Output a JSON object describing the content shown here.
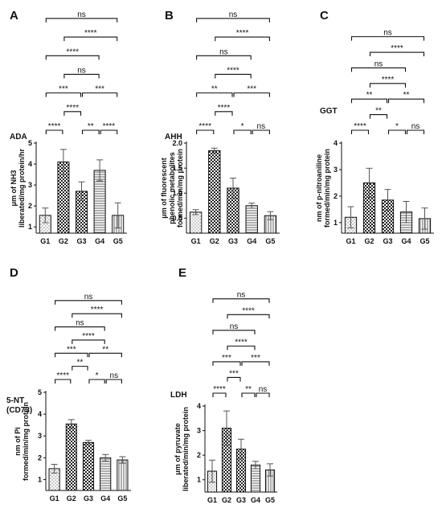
{
  "chart_data": [
    {
      "type": "bar",
      "panel": "A",
      "title": "ADA",
      "ylabel": [
        "μm of NH3",
        "liberated/mg protein/hr"
      ],
      "categories": [
        "G1",
        "G2",
        "G3",
        "G4",
        "G5"
      ],
      "values": [
        1.55,
        4.1,
        2.7,
        3.7,
        1.55
      ],
      "errors": [
        0.35,
        0.6,
        0.45,
        0.5,
        0.6
      ],
      "ylim": [
        0.7,
        5
      ],
      "yticks": [
        1,
        2,
        3,
        4,
        5
      ],
      "patterns": [
        "dots",
        "checker",
        "checker",
        "hlines",
        "vlines"
      ],
      "significance": [
        {
          "from": 0,
          "to": 1,
          "label": "****"
        },
        {
          "from": 2,
          "to": 3,
          "label": "**"
        },
        {
          "from": 3,
          "to": 4,
          "label": "****"
        },
        {
          "from": 1,
          "to": 2,
          "label": "****"
        },
        {
          "from": 0,
          "to": 2,
          "label": "***"
        },
        {
          "from": 2,
          "to": 4,
          "label": "***"
        },
        {
          "from": 1,
          "to": 3,
          "label": "ns"
        },
        {
          "from": 0,
          "to": 3,
          "label": "****"
        },
        {
          "from": 1,
          "to": 4,
          "label": "****"
        },
        {
          "from": 0,
          "to": 4,
          "label": "ns"
        }
      ]
    },
    {
      "type": "bar",
      "panel": "B",
      "title": "AHH",
      "ylabel": [
        "μm of fluorescent",
        "phenolic metabolites",
        "formed/min/mg protein"
      ],
      "categories": [
        "G1",
        "G2",
        "G3",
        "G4",
        "G5"
      ],
      "values": [
        0.62,
        1.85,
        1.1,
        0.75,
        0.55
      ],
      "errors": [
        0.05,
        0.05,
        0.2,
        0.05,
        0.08
      ],
      "ylim": [
        0.2,
        2
      ],
      "yticks": [
        0.5,
        1.0,
        1.5,
        2.0
      ],
      "patterns": [
        "dots",
        "checker",
        "checker",
        "hlines",
        "vlines"
      ],
      "significance": [
        {
          "from": 0,
          "to": 1,
          "label": "****"
        },
        {
          "from": 2,
          "to": 3,
          "label": "*"
        },
        {
          "from": 3,
          "to": 4,
          "label": "ns"
        },
        {
          "from": 1,
          "to": 2,
          "label": "****"
        },
        {
          "from": 2,
          "to": 4,
          "label": "***"
        },
        {
          "from": 0,
          "to": 2,
          "label": "**"
        },
        {
          "from": 1,
          "to": 3,
          "label": "****"
        },
        {
          "from": 0,
          "to": 3,
          "label": "ns"
        },
        {
          "from": 1,
          "to": 4,
          "label": "****"
        },
        {
          "from": 0,
          "to": 4,
          "label": "ns"
        }
      ]
    },
    {
      "type": "bar",
      "panel": "C",
      "title": "GGT",
      "ylabel": [
        "nm of p-nitroaniline",
        "formed/min/mg protein"
      ],
      "categories": [
        "G1",
        "G2",
        "G3",
        "G4",
        "G5"
      ],
      "values": [
        1.2,
        2.5,
        1.85,
        1.4,
        1.15
      ],
      "errors": [
        0.4,
        0.55,
        0.4,
        0.4,
        0.4
      ],
      "ylim": [
        0.6,
        4
      ],
      "yticks": [
        1,
        2,
        3,
        4
      ],
      "patterns": [
        "dots",
        "checker",
        "checker",
        "hlines",
        "vlines"
      ],
      "significance": [
        {
          "from": 0,
          "to": 1,
          "label": "****"
        },
        {
          "from": 2,
          "to": 3,
          "label": "*"
        },
        {
          "from": 3,
          "to": 4,
          "label": "ns"
        },
        {
          "from": 1,
          "to": 2,
          "label": "**"
        },
        {
          "from": 2,
          "to": 4,
          "label": "**"
        },
        {
          "from": 0,
          "to": 2,
          "label": "**"
        },
        {
          "from": 1,
          "to": 3,
          "label": "****"
        },
        {
          "from": 0,
          "to": 3,
          "label": "ns"
        },
        {
          "from": 1,
          "to": 4,
          "label": "****"
        },
        {
          "from": 0,
          "to": 4,
          "label": "ns"
        }
      ]
    },
    {
      "type": "bar",
      "panel": "D",
      "title": [
        "5-NT",
        "(CD73)"
      ],
      "ylabel": [
        "nm of Pi",
        "formed/min/mg protein"
      ],
      "categories": [
        "G1",
        "G2",
        "G3",
        "G4",
        "G5"
      ],
      "values": [
        1.5,
        3.55,
        2.7,
        2.0,
        1.9
      ],
      "errors": [
        0.2,
        0.2,
        0.1,
        0.15,
        0.15
      ],
      "ylim": [
        0.5,
        5
      ],
      "yticks": [
        1,
        2,
        3,
        4,
        5
      ],
      "patterns": [
        "dots",
        "checker",
        "checker",
        "hlines",
        "vlines"
      ],
      "significance": [
        {
          "from": 0,
          "to": 1,
          "label": "****"
        },
        {
          "from": 2,
          "to": 3,
          "label": "*"
        },
        {
          "from": 3,
          "to": 4,
          "label": "ns"
        },
        {
          "from": 1,
          "to": 2,
          "label": "**"
        },
        {
          "from": 2,
          "to": 4,
          "label": "**"
        },
        {
          "from": 0,
          "to": 2,
          "label": "***"
        },
        {
          "from": 1,
          "to": 3,
          "label": "****"
        },
        {
          "from": 0,
          "to": 3,
          "label": "ns"
        },
        {
          "from": 1,
          "to": 4,
          "label": "****"
        },
        {
          "from": 0,
          "to": 4,
          "label": "ns"
        }
      ]
    },
    {
      "type": "bar",
      "panel": "E",
      "title": "LDH",
      "ylabel": [
        "μm of pyruvate",
        "liberated/min/mg protein"
      ],
      "categories": [
        "G1",
        "G2",
        "G3",
        "G4",
        "G5"
      ],
      "values": [
        1.35,
        3.1,
        2.25,
        1.6,
        1.4
      ],
      "errors": [
        0.45,
        0.7,
        0.4,
        0.15,
        0.25
      ],
      "ylim": [
        0.5,
        4
      ],
      "yticks": [
        1,
        2,
        3,
        4
      ],
      "patterns": [
        "dots",
        "checker",
        "checker",
        "hlines",
        "vlines"
      ],
      "significance": [
        {
          "from": 0,
          "to": 1,
          "label": "****"
        },
        {
          "from": 2,
          "to": 3,
          "label": "**"
        },
        {
          "from": 3,
          "to": 4,
          "label": "ns"
        },
        {
          "from": 1,
          "to": 2,
          "label": "***"
        },
        {
          "from": 2,
          "to": 4,
          "label": "***"
        },
        {
          "from": 0,
          "to": 2,
          "label": "***"
        },
        {
          "from": 1,
          "to": 3,
          "label": "****"
        },
        {
          "from": 0,
          "to": 3,
          "label": "ns"
        },
        {
          "from": 1,
          "to": 4,
          "label": "****"
        },
        {
          "from": 0,
          "to": 4,
          "label": "ns"
        }
      ]
    }
  ]
}
